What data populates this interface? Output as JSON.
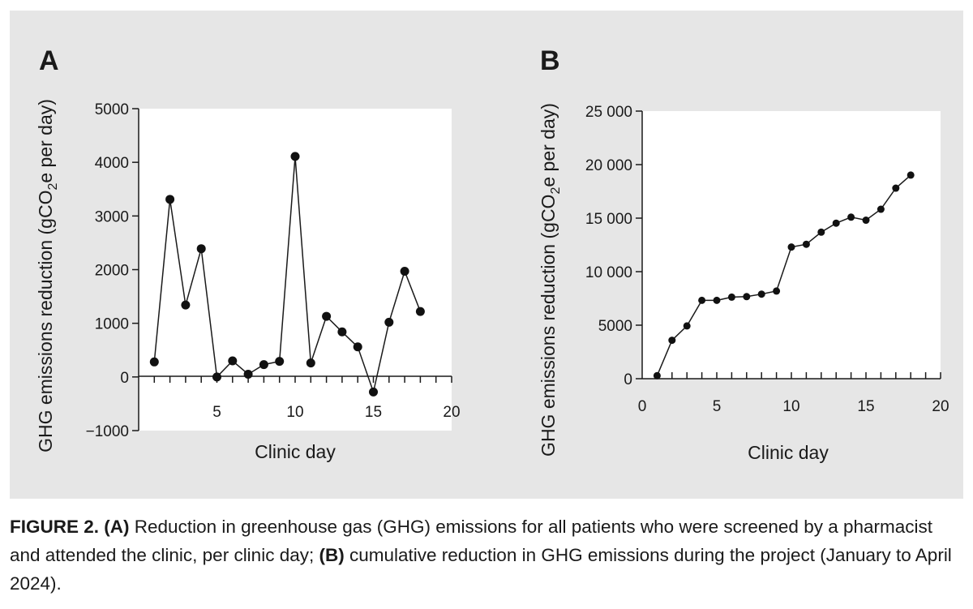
{
  "chart_data": [
    {
      "type": "line",
      "panel_label": "A",
      "xlabel": "Clinic day",
      "ylabel": "GHG emissions reduction (gCO2e per day)",
      "xlim": [
        0,
        20
      ],
      "ylim": [
        -1000,
        5000
      ],
      "xticks": [
        5,
        10,
        15,
        20
      ],
      "yticks": [
        -1000,
        0,
        1000,
        2000,
        3000,
        4000,
        5000
      ],
      "ytick_labels": [
        "−1000",
        "0",
        "1000",
        "2000",
        "3000",
        "4000",
        "5000"
      ],
      "x": [
        1,
        2,
        3,
        4,
        5,
        6,
        7,
        8,
        9,
        10,
        11,
        12,
        13,
        14,
        15,
        16,
        17,
        18
      ],
      "values": [
        280,
        3310,
        1340,
        2390,
        0,
        300,
        50,
        230,
        290,
        4110,
        260,
        1130,
        840,
        560,
        -280,
        1020,
        1970,
        1220
      ],
      "grid": false
    },
    {
      "type": "line",
      "panel_label": "B",
      "xlabel": "Clinic day",
      "ylabel": "GHG emissions reduction (gCO2e per day)",
      "xlim": [
        0,
        20
      ],
      "ylim": [
        0,
        25000
      ],
      "xticks": [
        0,
        5,
        10,
        15,
        20
      ],
      "yticks": [
        0,
        5000,
        10000,
        15000,
        20000,
        25000
      ],
      "ytick_labels": [
        "0",
        "5000",
        "10 000",
        "15 000",
        "20 000",
        "25 000"
      ],
      "x": [
        1,
        2,
        3,
        4,
        5,
        6,
        7,
        8,
        9,
        10,
        11,
        12,
        13,
        14,
        15,
        16,
        17,
        18
      ],
      "values": [
        280,
        3590,
        4930,
        7320,
        7320,
        7620,
        7670,
        7900,
        8190,
        12300,
        12560,
        13690,
        14530,
        15090,
        14810,
        15830,
        17800,
        19020
      ],
      "grid": false
    }
  ],
  "caption": {
    "label": "FIGURE 2.",
    "part_a_label": "(A)",
    "part_a_text": " Reduction in greenhouse gas (GHG) emissions for all patients who were screened by a pharmacist and attended the clinic, per clinic day; ",
    "part_b_label": "(B)",
    "part_b_text": " cumulative reduction in GHG emissions during the project (January to April 2024)."
  }
}
